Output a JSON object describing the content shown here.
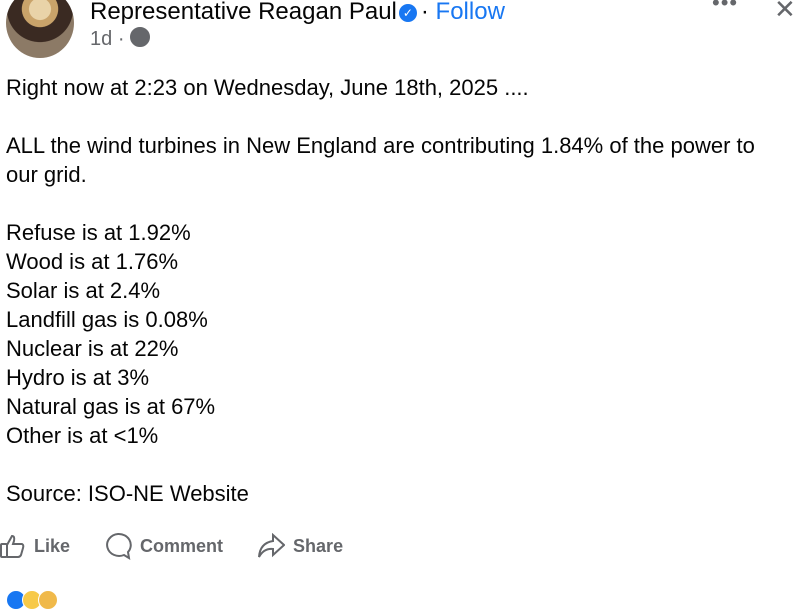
{
  "post": {
    "author": "Representative Reagan Paul",
    "follow_label": "Follow",
    "separator": "·",
    "age": "1d",
    "lines": [
      "Right now at 2:23 on Wednesday, June 18th, 2025 ....",
      "",
      "ALL the wind turbines in New England are contributing 1.84% of the power to our grid.",
      "",
      "Refuse is at 1.92%",
      "Wood is at 1.76%",
      "Solar is at 2.4%",
      "Landfill gas is 0.08%",
      "Nuclear is at 22%",
      "Hydro is at 3%",
      "Natural gas is at 67%",
      "Other is at <1%",
      "",
      "Source: ISO-NE Website"
    ]
  },
  "actions": {
    "like": "Like",
    "comment": "Comment",
    "share": "Share"
  },
  "colors": {
    "accent": "#1877f2",
    "muted": "#65676b"
  },
  "icons": [
    "verified-badge-icon",
    "globe-icon",
    "more-icon",
    "close-icon",
    "like-icon",
    "comment-icon",
    "share-icon"
  ]
}
